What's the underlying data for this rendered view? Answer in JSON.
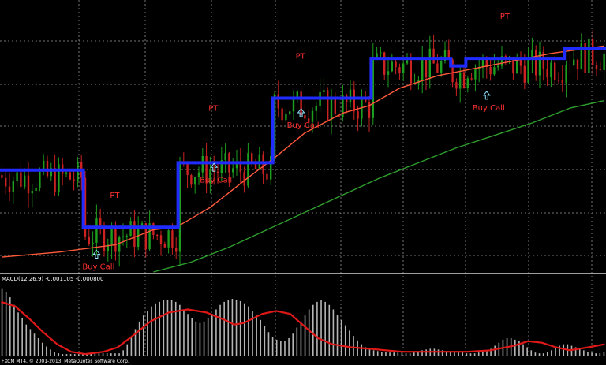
{
  "chart_data": {
    "type": "line",
    "title": "",
    "xlabel": "",
    "ylabel": "",
    "grid": true,
    "colors": {
      "background": "#000000",
      "grid": "#9a9a9a",
      "bull": "#1e9e1e",
      "bear": "#cc2222",
      "trend_line": "#1f2bff",
      "fast_ma": "#ff5a3c",
      "slow_ma": "#2e9e2e",
      "signal_arrow": "#8fe3ff",
      "label_text": "#ff3030",
      "macd_hist": "#b5b5b5",
      "macd_signal": "#e01818"
    },
    "price_ylim": [
      0,
      100
    ],
    "x_count": 160,
    "trend_steps": [
      {
        "x0": 0,
        "x1": 21,
        "y": 41
      },
      {
        "x0": 22,
        "x1": 46,
        "y": 18
      },
      {
        "x0": 47,
        "x1": 71,
        "y": 44
      },
      {
        "x0": 72,
        "x1": 97,
        "y": 70
      },
      {
        "x0": 98,
        "x1": 118,
        "y": 86
      },
      {
        "x0": 119,
        "x1": 122,
        "y": 83
      },
      {
        "x0": 123,
        "x1": 148,
        "y": 86
      },
      {
        "x0": 149,
        "x1": 159,
        "y": 90
      }
    ],
    "fast_ma": [
      [
        0,
        6
      ],
      [
        15,
        8
      ],
      [
        30,
        11
      ],
      [
        40,
        17
      ],
      [
        46,
        18
      ],
      [
        55,
        26
      ],
      [
        65,
        38
      ],
      [
        72,
        46
      ],
      [
        80,
        56
      ],
      [
        90,
        64
      ],
      [
        97,
        67
      ],
      [
        105,
        74
      ],
      [
        115,
        79
      ],
      [
        125,
        82
      ],
      [
        135,
        85
      ],
      [
        145,
        88
      ],
      [
        159,
        91
      ]
    ],
    "slow_ma": [
      [
        40,
        0
      ],
      [
        50,
        4
      ],
      [
        60,
        10
      ],
      [
        70,
        17
      ],
      [
        80,
        24
      ],
      [
        90,
        31
      ],
      [
        100,
        38
      ],
      [
        110,
        44
      ],
      [
        120,
        50
      ],
      [
        130,
        55
      ],
      [
        140,
        60
      ],
      [
        150,
        66
      ],
      [
        159,
        69
      ]
    ],
    "annotations": [
      {
        "type": "buy",
        "x": 25,
        "y": 10,
        "text": "Buy Call"
      },
      {
        "type": "pt",
        "x": 30,
        "y": 28,
        "text": "PT"
      },
      {
        "type": "buy",
        "x": 56,
        "y": 45,
        "text": "Buy Call"
      },
      {
        "type": "pt",
        "x": 56,
        "y": 63,
        "text": "PT"
      },
      {
        "type": "buy",
        "x": 79,
        "y": 67,
        "text": "Buy Call"
      },
      {
        "type": "pt",
        "x": 79,
        "y": 84,
        "text": "PT"
      },
      {
        "type": "buy",
        "x": 128,
        "y": 74,
        "text": "Buy Call"
      },
      {
        "type": "pt",
        "x": 133,
        "y": 100,
        "text": "PT"
      }
    ],
    "indicator": {
      "label": "MACD(12,26,9) -0.001105 -0.000800",
      "histogram": [
        90,
        85,
        78,
        68,
        58,
        50,
        42,
        36,
        30,
        24,
        18,
        13,
        9,
        6,
        4,
        3,
        3,
        3,
        3,
        3,
        3,
        4,
        4,
        4,
        4,
        4,
        4,
        4,
        4,
        4,
        8,
        16,
        26,
        36,
        46,
        54,
        60,
        66,
        70,
        72,
        74,
        75,
        74,
        72,
        68,
        62,
        56,
        50,
        46,
        44,
        46,
        50,
        56,
        62,
        68,
        72,
        74,
        76,
        75,
        73,
        70,
        66,
        60,
        54,
        48,
        40,
        32,
        26,
        22,
        20,
        20,
        24,
        30,
        38,
        46,
        54,
        62,
        68,
        72,
        74,
        72,
        68,
        62,
        55,
        48,
        41,
        34,
        27,
        21,
        16,
        12,
        10,
        8,
        7,
        6,
        6,
        5,
        5,
        5,
        5,
        4,
        4,
        5,
        6,
        8,
        9,
        10,
        10,
        9,
        8,
        7,
        6,
        5,
        5,
        5,
        4,
        4,
        4,
        5,
        6,
        8,
        10,
        14,
        18,
        22,
        24,
        24,
        22,
        20,
        16,
        12,
        8,
        5,
        4,
        4,
        6,
        8,
        12,
        14,
        16,
        16,
        14,
        12,
        10,
        8,
        6,
        5,
        4,
        4,
        6
      ],
      "signal": [
        [
          0,
          72
        ],
        [
          6,
          66
        ],
        [
          12,
          50
        ],
        [
          18,
          32
        ],
        [
          24,
          16
        ],
        [
          30,
          6
        ],
        [
          36,
          3
        ],
        [
          44,
          6
        ],
        [
          50,
          12
        ],
        [
          56,
          26
        ],
        [
          64,
          46
        ],
        [
          72,
          58
        ],
        [
          80,
          62
        ],
        [
          88,
          58
        ],
        [
          96,
          48
        ],
        [
          100,
          42
        ],
        [
          104,
          44
        ],
        [
          112,
          56
        ],
        [
          118,
          60
        ],
        [
          124,
          56
        ],
        [
          130,
          40
        ],
        [
          136,
          24
        ],
        [
          142,
          16
        ],
        [
          150,
          12
        ],
        [
          158,
          10
        ],
        [
          165,
          8
        ],
        [
          172,
          6
        ],
        [
          180,
          6
        ],
        [
          190,
          6
        ],
        [
          200,
          6
        ],
        [
          210,
          8
        ],
        [
          220,
          14
        ],
        [
          226,
          20
        ],
        [
          232,
          18
        ],
        [
          238,
          12
        ],
        [
          244,
          8
        ],
        [
          252,
          12
        ],
        [
          259,
          16
        ]
      ],
      "ylim": [
        0,
        100
      ],
      "x_count": 260
    },
    "footer": "FXCM MT4, © 2001-2013, MetaQuotes Software Corp."
  }
}
